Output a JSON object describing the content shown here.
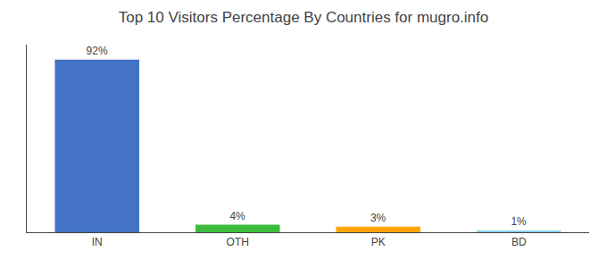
{
  "chart_data": {
    "type": "bar",
    "title": "Top 10 Visitors Percentage By Countries for mugro.info",
    "categories": [
      "IN",
      "OTH",
      "PK",
      "BD"
    ],
    "values": [
      92,
      4,
      3,
      1
    ],
    "value_labels": [
      "92%",
      "4%",
      "3%",
      "1%"
    ],
    "colors": [
      "#4472c4",
      "#3dbb3d",
      "#ffa500",
      "#87ceeb"
    ],
    "ylim": [
      0,
      100
    ],
    "grid": false,
    "data_labels": true,
    "tick_labels": "x"
  }
}
